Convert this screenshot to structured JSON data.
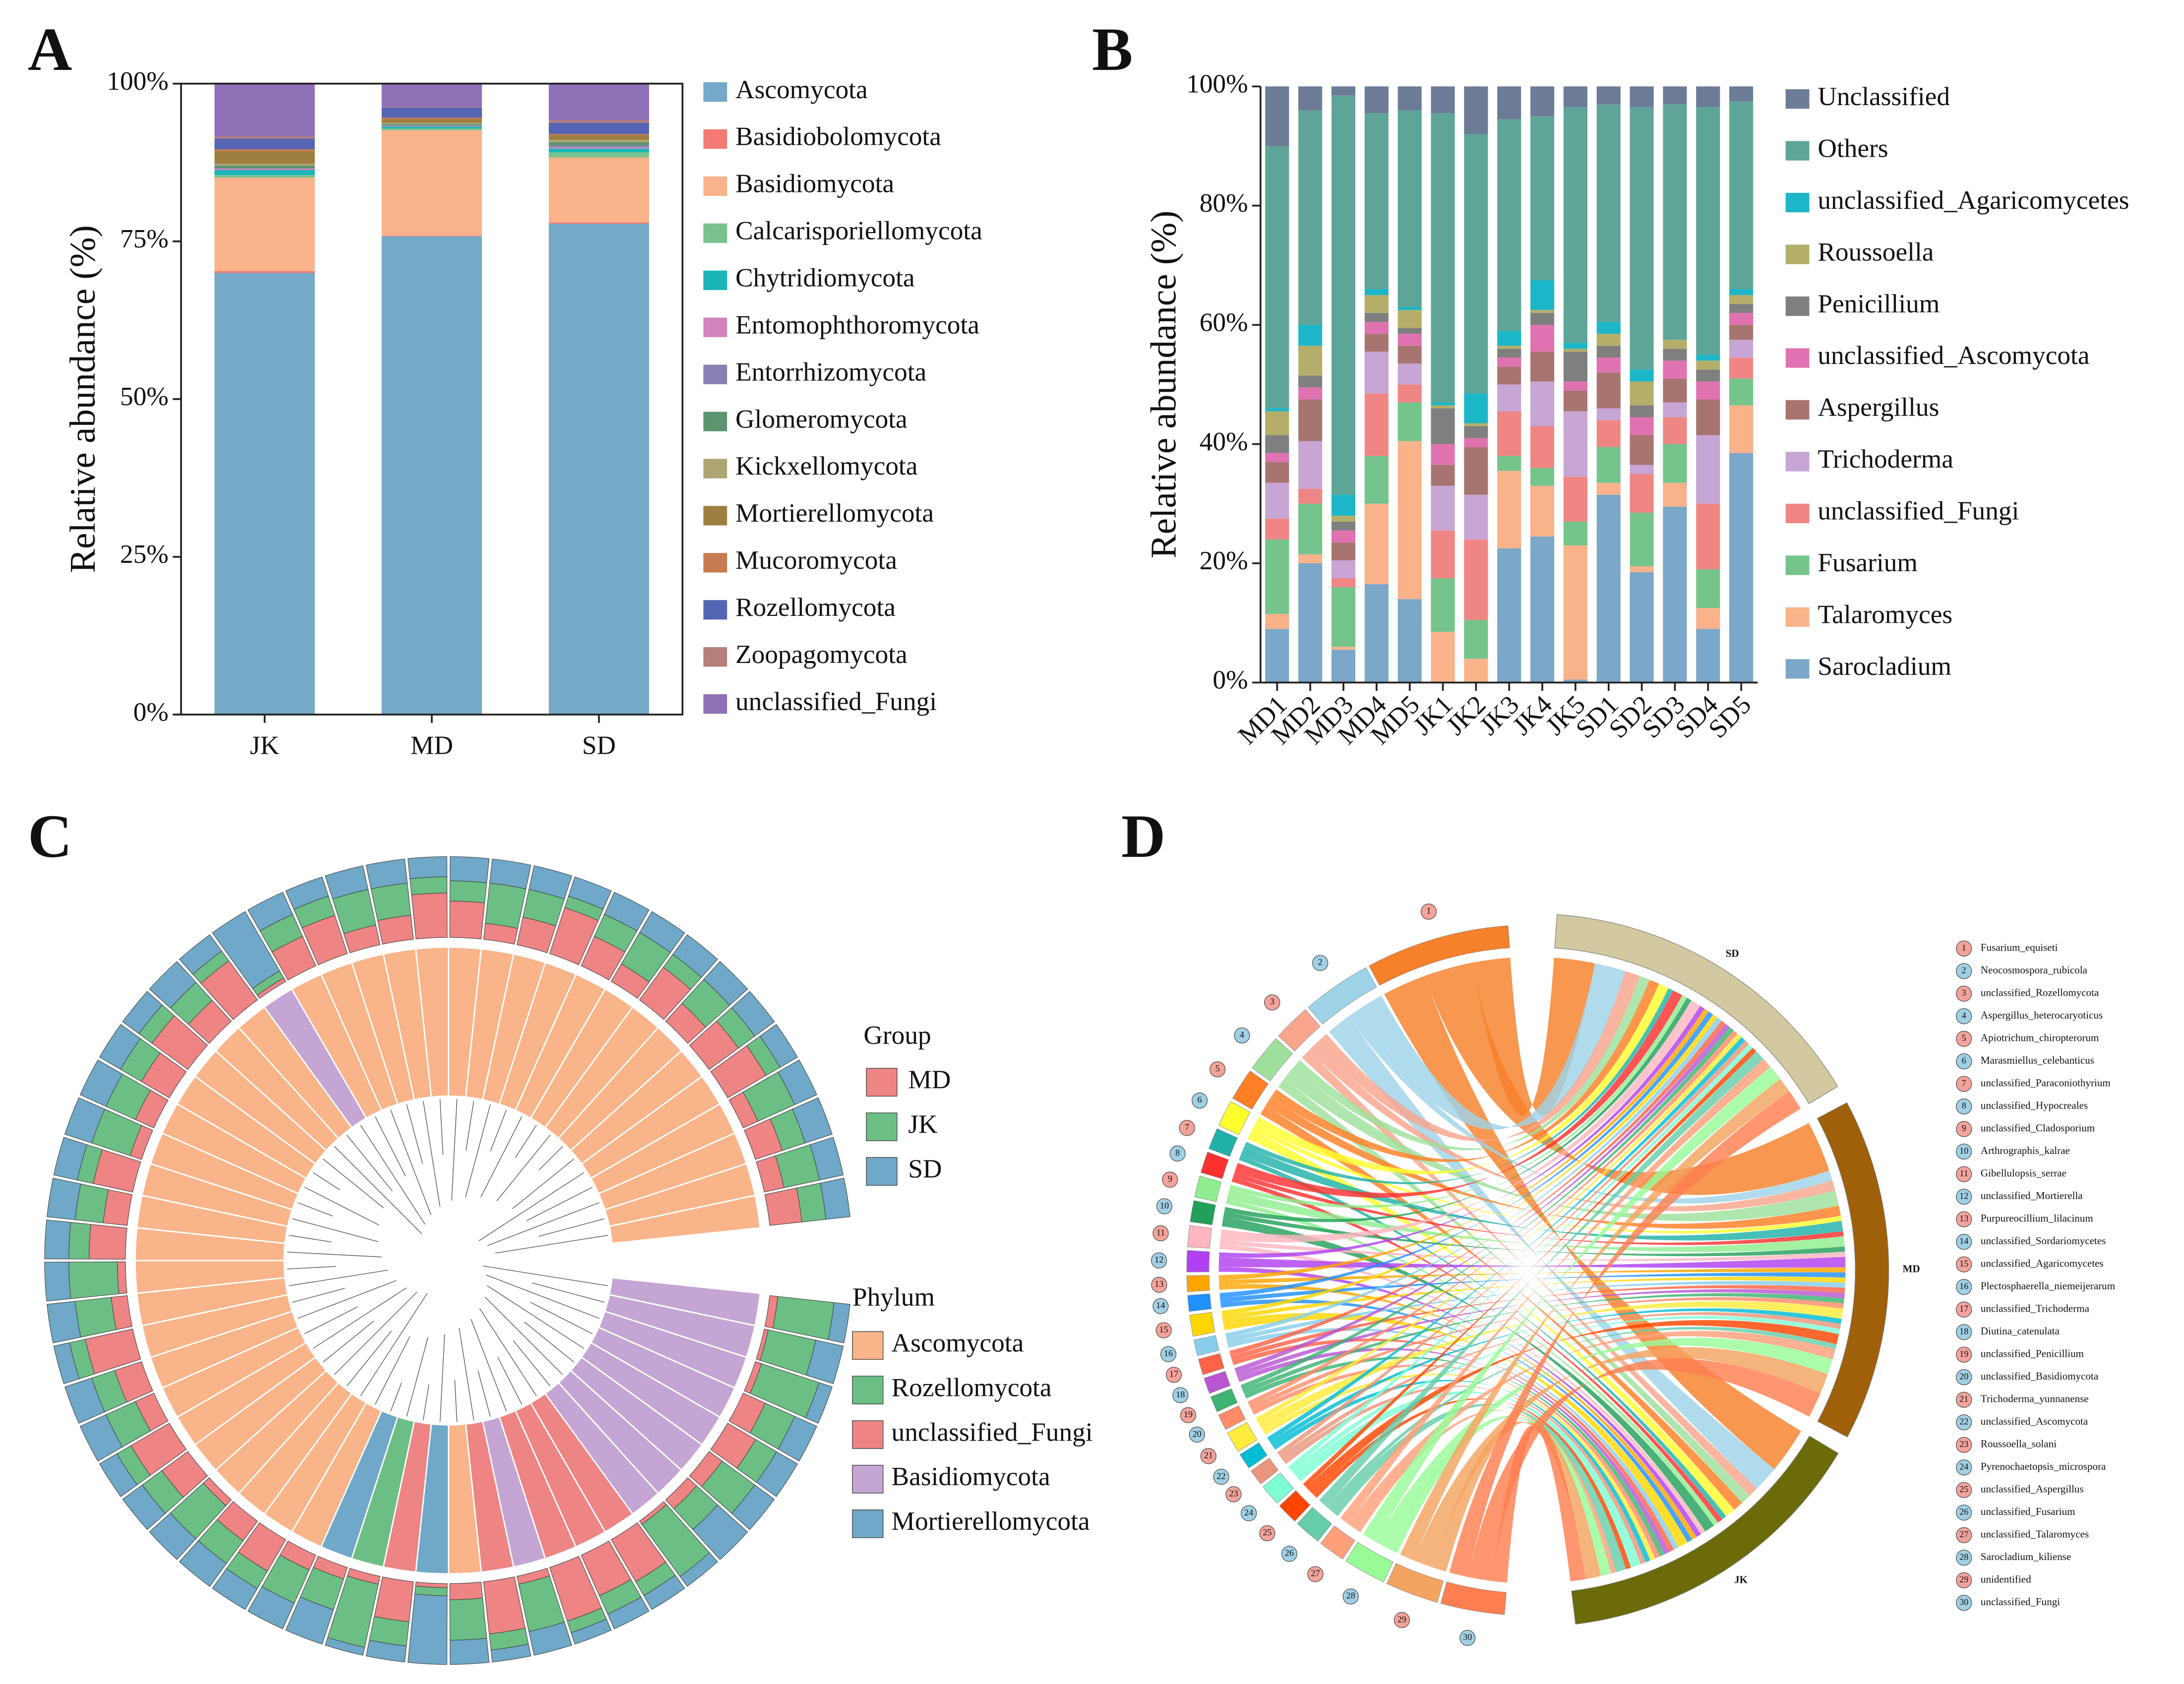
{
  "chart_data": [
    {
      "label": "A",
      "type": "stacked_bar",
      "frame": true,
      "legend_reversed": false,
      "ylabel": "Relative abundance (%)",
      "categories": [
        "JK",
        "MD",
        "SD"
      ],
      "ylim": [
        0,
        100
      ],
      "yticks": [
        {
          "value": 0,
          "label": "0%"
        },
        {
          "value": 25,
          "label": "25%"
        },
        {
          "value": 50,
          "label": "50%"
        },
        {
          "value": 75,
          "label": "75%"
        },
        {
          "value": 100,
          "label": "100%"
        }
      ],
      "series": [
        {
          "name": "Ascomycota",
          "color": "#74a9c8",
          "values": [
            70,
            75.8,
            77.8
          ]
        },
        {
          "name": "Basidiobolomycota",
          "color": "#f47a74",
          "values": [
            0.3,
            0.1,
            0.2
          ]
        },
        {
          "name": "Basidiomycota",
          "color": "#f9b28a",
          "values": [
            14.8,
            16.7,
            10.3
          ]
        },
        {
          "name": "Calcarisporiellomycota",
          "color": "#79c28e",
          "values": [
            0.4,
            0.3,
            0.8
          ]
        },
        {
          "name": "Chytridiomycota",
          "color": "#1bb5b8",
          "values": [
            0.8,
            0.3,
            0.6
          ]
        },
        {
          "name": "Entomophthoromycota",
          "color": "#d084bb",
          "values": [
            0.2,
            0.1,
            0.2
          ]
        },
        {
          "name": "Entorrhizomycota",
          "color": "#8681b1",
          "values": [
            0.1,
            0.1,
            0.3
          ]
        },
        {
          "name": "Glomeromycota",
          "color": "#5a9470",
          "values": [
            0.4,
            0.2,
            0.5
          ]
        },
        {
          "name": "Kickxellomycota",
          "color": "#ada572",
          "values": [
            0.3,
            0.2,
            0.4
          ]
        },
        {
          "name": "Mortierellomycota",
          "color": "#9e7f3f",
          "values": [
            2.0,
            0.6,
            0.7
          ]
        },
        {
          "name": "Mucoromycota",
          "color": "#c87b4f",
          "values": [
            0.3,
            0.2,
            0.2
          ]
        },
        {
          "name": "Rozellomycota",
          "color": "#5565b3",
          "values": [
            1.7,
            1.6,
            1.8
          ]
        },
        {
          "name": "Zoopagomycota",
          "color": "#b47f7a",
          "values": [
            0.3,
            0.1,
            0.4
          ]
        },
        {
          "name": "unclassified_Fungi",
          "color": "#8f71b8",
          "values": [
            8.4,
            3.7,
            5.8
          ]
        }
      ]
    },
    {
      "label": "B",
      "type": "stacked_bar",
      "frame": false,
      "legend_reversed": true,
      "ylabel": "Relative abundance (%)",
      "categories": [
        "MD1",
        "MD2",
        "MD3",
        "MD4",
        "MD5",
        "JK1",
        "JK2",
        "JK3",
        "JK4",
        "JK5",
        "SD1",
        "SD2",
        "SD3",
        "SD4",
        "SD5"
      ],
      "ylim": [
        0,
        100
      ],
      "yticks": [
        {
          "value": 0,
          "label": "0%"
        },
        {
          "value": 20,
          "label": "20%"
        },
        {
          "value": 40,
          "label": "40%"
        },
        {
          "value": 60,
          "label": "60%"
        },
        {
          "value": 80,
          "label": "80%"
        },
        {
          "value": 100,
          "label": "100%"
        }
      ],
      "series": [
        {
          "name": "Sarocladium",
          "color": "#7ba7c8",
          "values": [
            9,
            20,
            5.5,
            16.5,
            14,
            0,
            0,
            22.5,
            24.5,
            0.5,
            31.5,
            18.5,
            29.5,
            9,
            38.5
          ]
        },
        {
          "name": "Talaromyces",
          "color": "#f9b28a",
          "values": [
            2.5,
            1.5,
            0.5,
            13.5,
            26.5,
            8.5,
            4,
            13,
            8.5,
            22.5,
            2,
            1,
            4,
            3.5,
            8
          ]
        },
        {
          "name": "Fusarium",
          "color": "#74c48b",
          "values": [
            12.5,
            8.5,
            10,
            8,
            6.5,
            9,
            6.5,
            2.5,
            3,
            4,
            6,
            9,
            6.5,
            6.5,
            4.5
          ]
        },
        {
          "name": "unclassified_Fungi",
          "color": "#ef8683",
          "values": [
            3.5,
            2.5,
            1.5,
            10.5,
            3,
            8,
            13.5,
            7.5,
            7,
            7.5,
            4.5,
            6.5,
            4.5,
            11,
            3.5
          ]
        },
        {
          "name": "Trichoderma",
          "color": "#c7a5d4",
          "values": [
            6,
            8,
            3,
            7,
            3.5,
            7.5,
            7.5,
            4.5,
            7.5,
            11,
            2,
            1.5,
            2.5,
            11.5,
            3
          ]
        },
        {
          "name": "Aspergillus",
          "color": "#a87470",
          "values": [
            3.5,
            7,
            3,
            3,
            3,
            3.5,
            8,
            3,
            5,
            3.5,
            6,
            5,
            4,
            6,
            2.5
          ]
        },
        {
          "name": "unclassified_Ascomycota",
          "color": "#e072b1",
          "values": [
            1.5,
            2,
            2,
            2,
            2,
            3.5,
            1.5,
            1.5,
            4.5,
            1.5,
            2.5,
            3,
            3,
            3,
            2
          ]
        },
        {
          "name": "Penicillium",
          "color": "#7f7f7f",
          "values": [
            3,
            2,
            1.5,
            1.5,
            1,
            6,
            2,
            1.5,
            2,
            5,
            2,
            2,
            2,
            2,
            1.5
          ]
        },
        {
          "name": "Roussoella",
          "color": "#b5ae6a",
          "values": [
            4,
            5,
            1,
            3,
            3,
            0.5,
            0.5,
            0.5,
            0.5,
            0.5,
            2,
            4,
            1.5,
            1.5,
            1.5
          ]
        },
        {
          "name": "unclassified_Agaricomycetes",
          "color": "#1cb6c8",
          "values": [
            0.5,
            3.5,
            3.5,
            1,
            0.5,
            0.5,
            5,
            2.5,
            5,
            1,
            2,
            2,
            0,
            1,
            1
          ]
        },
        {
          "name": "Others",
          "color": "#5fa597",
          "values": [
            44,
            36,
            67,
            29.5,
            33,
            48.5,
            43.5,
            35.5,
            27.5,
            39.5,
            36.5,
            44,
            39.5,
            41.5,
            31.5
          ]
        },
        {
          "name": "Unclassified",
          "color": "#6c7c97",
          "values": [
            10,
            4,
            1.5,
            4.5,
            4,
            4.5,
            8,
            5.5,
            5,
            3.5,
            3,
            3.5,
            3,
            3.5,
            2.5
          ]
        }
      ]
    },
    {
      "label": "C",
      "type": "circular_tree",
      "group_legend_title": "Group",
      "phylum_legend_title": "Phylum",
      "phyla": [
        {
          "name": "Ascomycota",
          "color": "#f9b48a"
        },
        {
          "name": "Rozellomycota",
          "color": "#6cbf84"
        },
        {
          "name": "unclassified_Fungi",
          "color": "#ee8484"
        },
        {
          "name": "Basidiomycota",
          "color": "#c5a5d3"
        },
        {
          "name": "Mortierellomycota",
          "color": "#6fa8c8"
        }
      ],
      "tip_phylum": [
        3,
        3,
        3,
        3,
        3,
        3,
        3,
        3,
        2,
        2,
        2,
        3,
        2,
        0,
        4,
        2,
        1,
        4,
        0,
        0,
        0,
        0,
        0,
        0,
        0,
        0,
        0,
        0,
        0,
        0,
        0,
        0,
        0,
        0,
        0,
        0,
        0,
        0,
        3,
        0,
        0,
        0,
        0,
        0,
        0,
        0,
        0,
        0,
        0,
        0,
        0,
        0,
        0,
        0,
        0,
        0,
        0,
        0
      ],
      "groups": [
        {
          "name": "MD",
          "color": "#ee8484",
          "values": [
            10,
            5,
            8,
            30,
            40,
            20,
            15,
            5,
            60,
            55,
            70,
            10,
            65,
            20,
            5,
            50,
            10,
            15,
            20,
            45,
            30,
            10,
            40,
            55,
            25,
            35,
            60,
            20,
            10,
            45,
            30,
            50,
            15,
            25,
            40,
            55,
            35,
            60,
            5,
            40,
            50,
            25,
            30,
            55,
            45,
            20,
            35,
            60,
            40,
            25,
            50,
            30,
            45,
            55,
            20,
            35,
            25,
            40
          ]
        },
        {
          "name": "JK",
          "color": "#6cbf84",
          "values": [
            70,
            60,
            75,
            40,
            30,
            50,
            35,
            80,
            20,
            25,
            15,
            60,
            20,
            50,
            10,
            30,
            80,
            40,
            45,
            25,
            35,
            55,
            30,
            20,
            40,
            30,
            20,
            45,
            60,
            25,
            35,
            20,
            50,
            40,
            30,
            20,
            30,
            15,
            10,
            30,
            25,
            45,
            40,
            20,
            25,
            50,
            35,
            15,
            30,
            45,
            20,
            40,
            25,
            20,
            50,
            30,
            45,
            30
          ]
        },
        {
          "name": "SD",
          "color": "#6fa8c8",
          "values": [
            20,
            35,
            17,
            30,
            30,
            30,
            50,
            15,
            20,
            20,
            15,
            30,
            15,
            30,
            85,
            20,
            10,
            45,
            35,
            30,
            35,
            35,
            30,
            25,
            35,
            35,
            20,
            35,
            30,
            30,
            35,
            30,
            35,
            35,
            30,
            25,
            35,
            25,
            85,
            30,
            25,
            30,
            30,
            25,
            30,
            30,
            30,
            25,
            30,
            30,
            30,
            30,
            30,
            25,
            30,
            35,
            30,
            30
          ]
        }
      ]
    },
    {
      "label": "D",
      "type": "chord",
      "groups": [
        {
          "name": "SD",
          "color": "#d2c9a0"
        },
        {
          "name": "MD",
          "color": "#a0600a"
        },
        {
          "name": "JK",
          "color": "#6b6b0a"
        }
      ],
      "species": [
        {
          "id": 1,
          "name": "Fusarium_equiseti",
          "color": "#f7802a",
          "values": [
            8,
            10,
            9
          ]
        },
        {
          "id": 2,
          "name": "Neocosmospora_rubicola",
          "color": "#9fd3e8",
          "values": [
            6,
            2,
            5
          ]
        },
        {
          "id": 3,
          "name": "unclassified_Rozellomycota",
          "color": "#f9a58c",
          "values": [
            3,
            2,
            2
          ]
        },
        {
          "id": 4,
          "name": "Aspergillus_heterocaryoticus",
          "color": "#9ee09b",
          "values": [
            2,
            3,
            2
          ]
        },
        {
          "id": 5,
          "name": "Apiotrichum_chiropterorum",
          "color": "#ff7f24",
          "values": [
            2,
            2,
            2
          ]
        },
        {
          "id": 6,
          "name": "Marasmiellus_celebanticus",
          "color": "#ffff2e",
          "values": [
            2,
            1,
            2
          ]
        },
        {
          "id": 7,
          "name": "unclassified_Paraconiothyrium",
          "color": "#20b2aa",
          "values": [
            1,
            2,
            1
          ]
        },
        {
          "id": 8,
          "name": "unclassified_Hypocreales",
          "color": "#ff3030",
          "values": [
            2,
            1,
            1
          ]
        },
        {
          "id": 9,
          "name": "unclassified_Cladosporium",
          "color": "#90ee90",
          "values": [
            1,
            2,
            1
          ]
        },
        {
          "id": 10,
          "name": "Arthrographis_kalrae",
          "color": "#22a05a",
          "values": [
            1,
            1,
            2
          ]
        },
        {
          "id": 11,
          "name": "Gibellulopsis_serrae",
          "color": "#ffb6c1",
          "values": [
            2,
            1,
            1
          ]
        },
        {
          "id": 12,
          "name": "unclassified_Mortierella",
          "color": "#b040f0",
          "values": [
            1,
            2,
            1
          ]
        },
        {
          "id": 13,
          "name": "Purpureocillium_lilacinum",
          "color": "#ffa500",
          "values": [
            1,
            1,
            1
          ]
        },
        {
          "id": 14,
          "name": "unclassified_Sordariomycetes",
          "color": "#1e90ff",
          "values": [
            1,
            1,
            1
          ]
        },
        {
          "id": 15,
          "name": "unclassified_Agaricomycetes",
          "color": "#ffd700",
          "values": [
            1,
            1,
            2
          ]
        },
        {
          "id": 16,
          "name": "Plectosphaerella_niemeijerarum",
          "color": "#87ceeb",
          "values": [
            1,
            1,
            1
          ]
        },
        {
          "id": 17,
          "name": "unclassified_Trichoderma",
          "color": "#ff6347",
          "values": [
            1,
            1,
            1
          ]
        },
        {
          "id": 18,
          "name": "Diutina_catenulata",
          "color": "#ba55d3",
          "values": [
            1,
            1,
            1
          ]
        },
        {
          "id": 19,
          "name": "unclassified_Penicillium",
          "color": "#3cb371",
          "values": [
            1,
            1,
            1
          ]
        },
        {
          "id": 20,
          "name": "unclassified_Basidiomycota",
          "color": "#ff8c69",
          "values": [
            1,
            1,
            1
          ]
        },
        {
          "id": 21,
          "name": "Trichoderma_yunnanense",
          "color": "#ffeb3b",
          "values": [
            1,
            2,
            1
          ]
        },
        {
          "id": 22,
          "name": "unclassified_Ascomycota",
          "color": "#00bcd4",
          "values": [
            1,
            1,
            1
          ]
        },
        {
          "id": 23,
          "name": "Roussoella_solani",
          "color": "#e9967a",
          "values": [
            1,
            1,
            1
          ]
        },
        {
          "id": 24,
          "name": "Pyrenochaetopsis_microspora",
          "color": "#7fffd4",
          "values": [
            1,
            1,
            2
          ]
        },
        {
          "id": 25,
          "name": "unclassified_Aspergillus",
          "color": "#ff4500",
          "values": [
            1,
            2,
            1
          ]
        },
        {
          "id": 26,
          "name": "unclassified_Fusarium",
          "color": "#66cdaa",
          "values": [
            2,
            1,
            2
          ]
        },
        {
          "id": 27,
          "name": "unclassified_Talaromyces",
          "color": "#ffa07a",
          "values": [
            2,
            2,
            1
          ]
        },
        {
          "id": 28,
          "name": "Sarocladium_kiliense",
          "color": "#98fb98",
          "values": [
            3,
            3,
            2
          ]
        },
        {
          "id": 29,
          "name": "unidentified",
          "color": "#f4a460",
          "values": [
            3,
            4,
            3
          ]
        },
        {
          "id": 30,
          "name": "unclassified_Fungi",
          "color": "#ff7f50",
          "values": [
            4,
            5,
            3
          ]
        }
      ]
    }
  ]
}
